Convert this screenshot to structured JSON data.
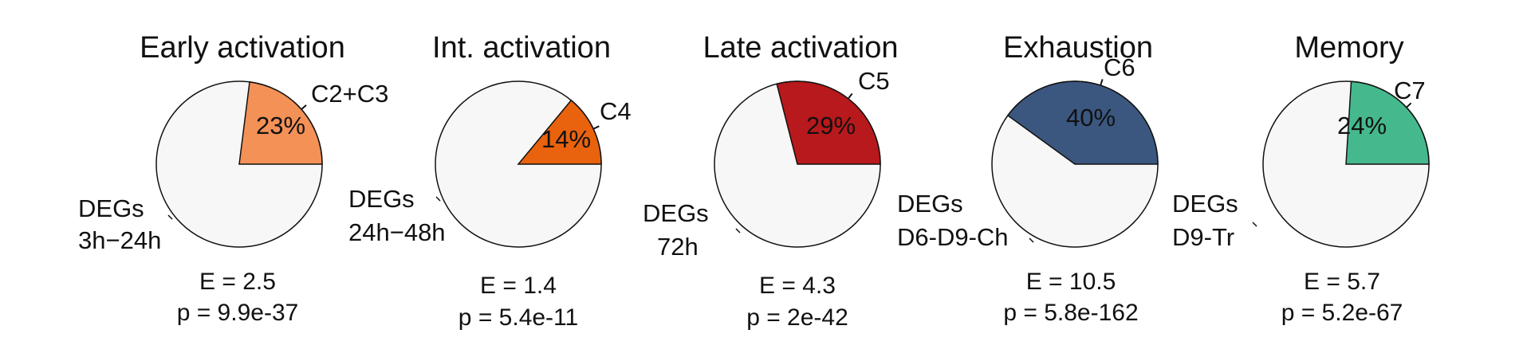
{
  "chart_data": [
    {
      "type": "pie",
      "title": "Early activation",
      "cluster_label": "C2+C3",
      "slices": [
        {
          "label": "C2+C3",
          "value": 23,
          "color": "#F39157"
        },
        {
          "label": "",
          "value": 77,
          "color": "#F7F7F7"
        }
      ],
      "percent_label": "23%",
      "deg_label": [
        "DEGs",
        "3h−24h"
      ],
      "E": "E = 2.5",
      "p": "p = 9.9e-37"
    },
    {
      "type": "pie",
      "title": "Int. activation",
      "cluster_label": "C4",
      "slices": [
        {
          "label": "C4",
          "value": 14,
          "color": "#E9620E"
        },
        {
          "label": "",
          "value": 86,
          "color": "#F7F7F7"
        }
      ],
      "percent_label": "14%",
      "deg_label": [
        "DEGs",
        "24h−48h"
      ],
      "E": "E = 1.4",
      "p": "p = 5.4e-11"
    },
    {
      "type": "pie",
      "title": "Late activation",
      "cluster_label": "C5",
      "slices": [
        {
          "label": "C5",
          "value": 29,
          "color": "#B8191C"
        },
        {
          "label": "",
          "value": 71,
          "color": "#F7F7F7"
        }
      ],
      "percent_label": "29%",
      "deg_label": [
        "DEGs",
        "72h"
      ],
      "E": "E = 4.3",
      "p": "p = 2e-42"
    },
    {
      "type": "pie",
      "title": "Exhaustion",
      "cluster_label": "C6",
      "slices": [
        {
          "label": "C6",
          "value": 40,
          "color": "#3B577F"
        },
        {
          "label": "",
          "value": 60,
          "color": "#F7F7F7"
        }
      ],
      "percent_label": "40%",
      "deg_label": [
        "DEGs",
        "D6-D9-Ch"
      ],
      "E": "E = 10.5",
      "p": "p = 5.8e-162"
    },
    {
      "type": "pie",
      "title": "Memory",
      "cluster_label": "C7",
      "slices": [
        {
          "label": "C7",
          "value": 24,
          "color": "#45B98D"
        },
        {
          "label": "",
          "value": 76,
          "color": "#F7F7F7"
        }
      ],
      "percent_label": "24%",
      "deg_label": [
        "DEGs",
        "D9-Tr"
      ],
      "E": "E = 5.7",
      "p": "p = 5.2e-67"
    }
  ]
}
